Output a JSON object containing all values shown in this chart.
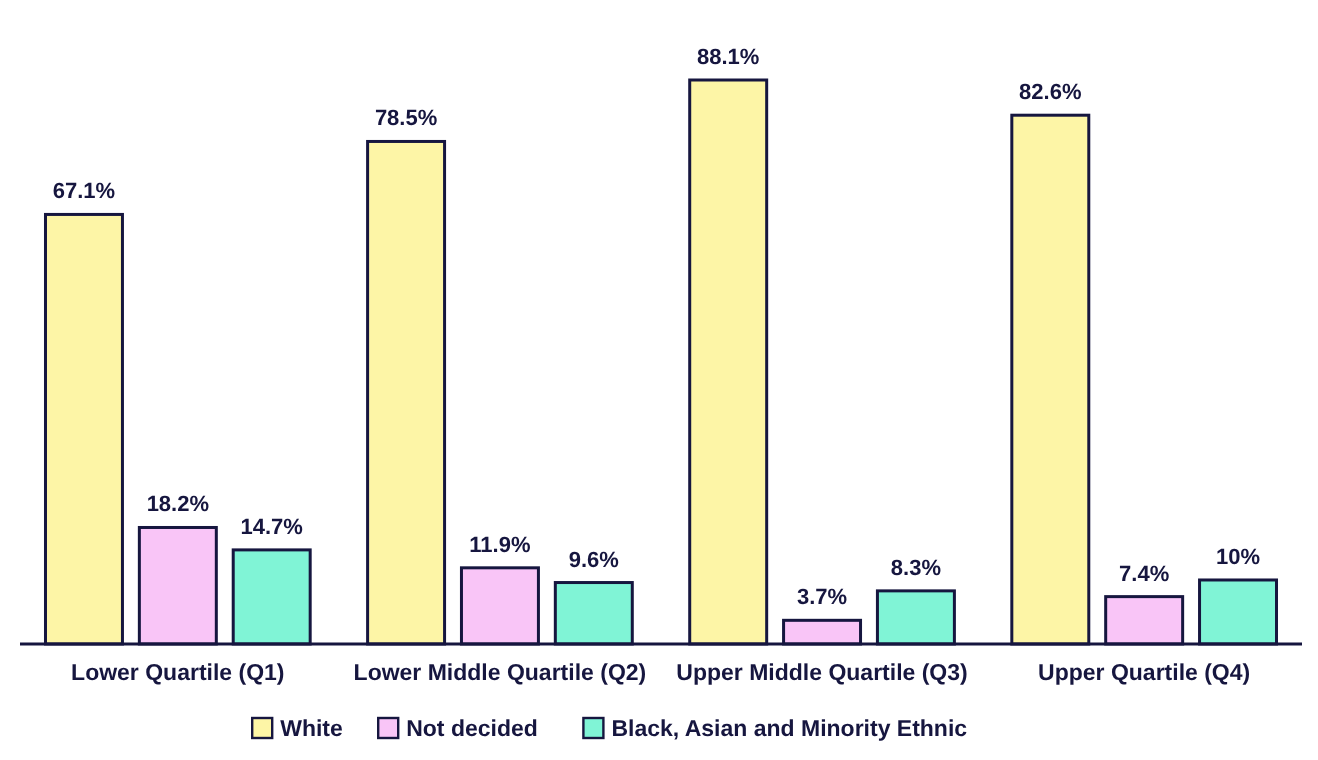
{
  "chart_data": {
    "type": "bar",
    "categories": [
      "Lower Quartile (Q1)",
      "Lower Middle Quartile (Q2)",
      "Upper Middle Quartile (Q3)",
      "Upper Quartile (Q4)"
    ],
    "series": [
      {
        "name": "White",
        "color": "#fdf5a6",
        "values": [
          67.1,
          78.5,
          88.1,
          82.6
        ],
        "value_labels": [
          "67.1%",
          "78.5%",
          "88.1%",
          "82.6%"
        ]
      },
      {
        "name": "Not decided",
        "color": "#f9c5f7",
        "values": [
          18.2,
          11.9,
          3.7,
          7.4
        ],
        "value_labels": [
          "18.2%",
          "11.9%",
          "3.7%",
          "7.4%"
        ]
      },
      {
        "name": "Black, Asian and Minority Ethnic",
        "color": "#80f4d6",
        "values": [
          14.7,
          9.6,
          8.3,
          10
        ],
        "value_labels": [
          "14.7%",
          "9.6%",
          "8.3%",
          "10%"
        ]
      }
    ],
    "legend": "bottom"
  }
}
